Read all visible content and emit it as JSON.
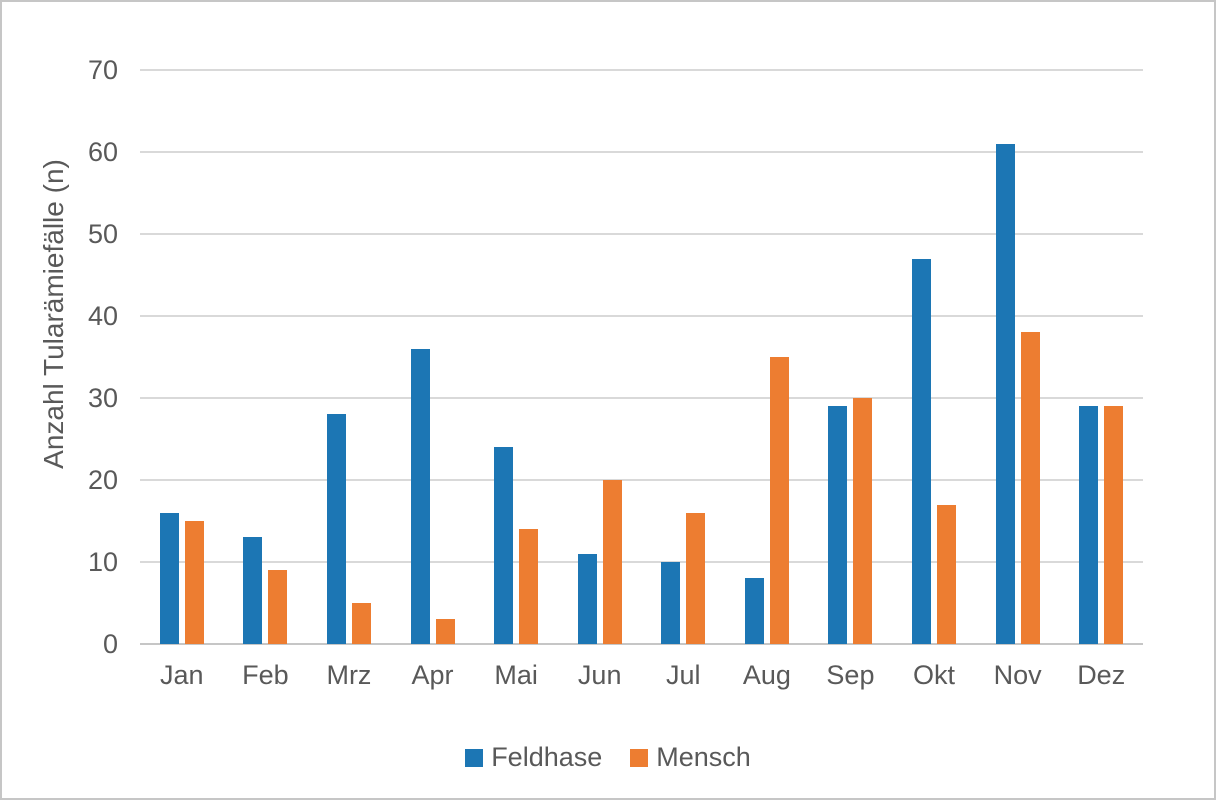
{
  "chart_data": {
    "type": "bar",
    "title": "",
    "xlabel": "",
    "ylabel": "Anzahl Tularämiefälle (n)",
    "categories": [
      "Jan",
      "Feb",
      "Mrz",
      "Apr",
      "Mai",
      "Jun",
      "Jul",
      "Aug",
      "Sep",
      "Okt",
      "Nov",
      "Dez"
    ],
    "series": [
      {
        "name": "Feldhase",
        "color": "#1c76b4",
        "values": [
          16,
          13,
          28,
          36,
          24,
          11,
          10,
          8,
          29,
          47,
          61,
          29
        ]
      },
      {
        "name": "Mensch",
        "color": "#ed7d31",
        "values": [
          15,
          9,
          5,
          3,
          14,
          20,
          16,
          35,
          30,
          17,
          38,
          29
        ]
      }
    ],
    "ylim": [
      0,
      70
    ],
    "yticks": [
      0,
      10,
      20,
      30,
      40,
      50,
      60,
      70
    ],
    "grid": "horizontal",
    "legend_position": "bottom-center",
    "colors": {
      "gridline": "#d9d9d9",
      "axis_line": "#c6c6c6",
      "text": "#595959",
      "chart_border": "#c6c6c6",
      "background": "#ffffff"
    }
  }
}
